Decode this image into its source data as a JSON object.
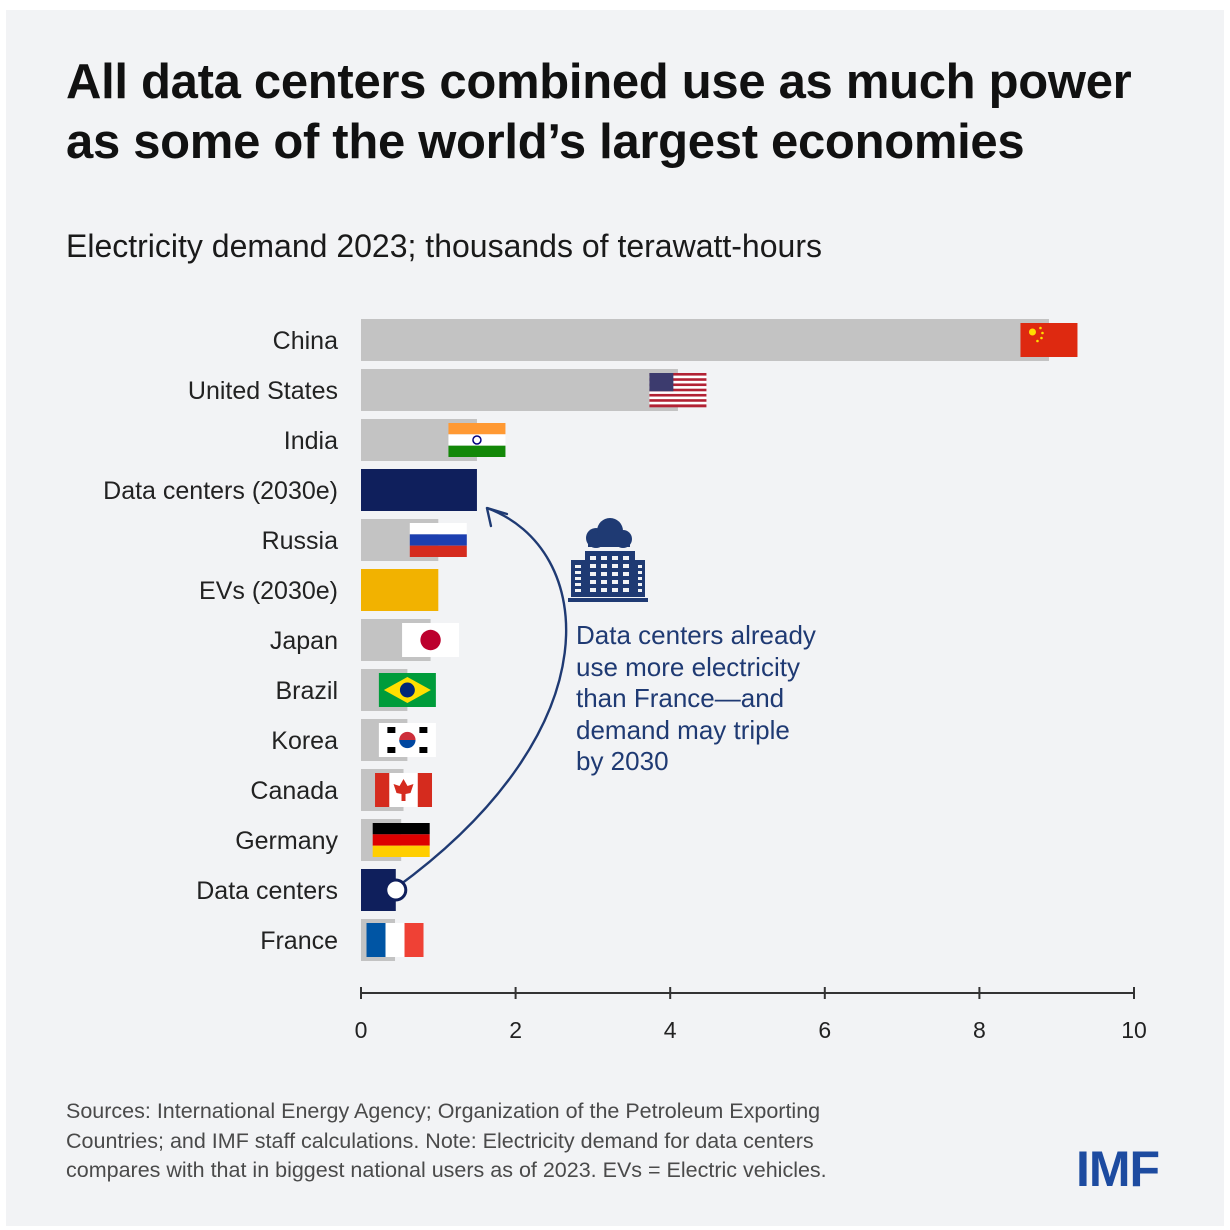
{
  "header": {
    "title": "All data centers combined use as much power as some of the world’s largest economies",
    "subtitle": "Electricity demand 2023; thousands of terawatt-hours"
  },
  "chart_data": {
    "type": "bar",
    "orientation": "horizontal",
    "categories": [
      "China",
      "United States",
      "India",
      "Data centers (2030e)",
      "Russia",
      "EVs (2030e)",
      "Japan",
      "Brazil",
      "Korea",
      "Canada",
      "Germany",
      "Data centers",
      "France"
    ],
    "values": [
      8.9,
      4.1,
      1.5,
      1.5,
      1.0,
      1.0,
      0.9,
      0.6,
      0.6,
      0.55,
      0.52,
      0.45,
      0.44
    ],
    "bar_kinds": [
      "country",
      "country",
      "country",
      "datacenter",
      "country",
      "ev",
      "country",
      "country",
      "country",
      "country",
      "country",
      "datacenter",
      "country"
    ],
    "flags": [
      "china-flag-icon",
      "us-flag-icon",
      "india-flag-icon",
      "",
      "russia-flag-icon",
      "",
      "japan-flag-icon",
      "brazil-flag-icon",
      "korea-flag-icon",
      "canada-flag-icon",
      "germany-flag-icon",
      "",
      "france-flag-icon"
    ],
    "xlim": [
      0,
      10
    ],
    "xticks": [
      0,
      2,
      4,
      6,
      8,
      10
    ],
    "xlabel": "",
    "ylabel": "",
    "grid": false,
    "colors": {
      "country": "#c3c3c3",
      "datacenter": "#0f1f5c",
      "ev": "#f2b200",
      "axis": "#333333",
      "annotation": "#1f3a73"
    }
  },
  "annotation": {
    "icon": "cloud-building-icon",
    "lines": [
      "Data centers already",
      "use more electricity",
      "than France—and",
      "demand may triple",
      "by 2030"
    ]
  },
  "footer": {
    "source_lines": [
      "Sources: International Energy Agency; Organization of the Petroleum Exporting",
      "Countries; and IMF staff calculations. Note: Electricity demand for data centers",
      "compares with that in biggest national users as of 2023. EVs = Electric vehicles."
    ],
    "logo": "IMF"
  }
}
